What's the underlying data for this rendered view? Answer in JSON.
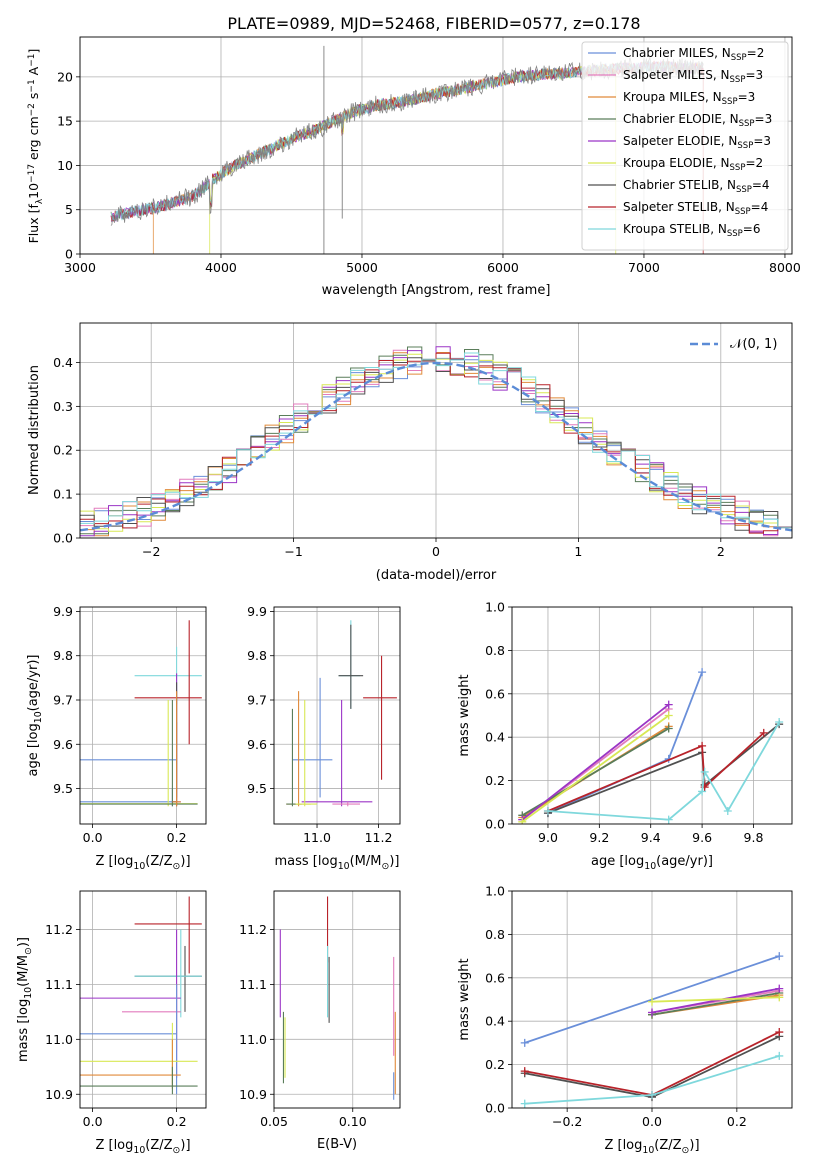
{
  "title": "PLATE=0989, MJD=52468, FIBERID=0577, z=0.178",
  "colors": {
    "chabrier_miles": "#6a8fd9",
    "salpeter_miles": "#e27cbd",
    "kroupa_miles": "#e08a3a",
    "chabrier_elodie": "#5a7d5a",
    "salpeter_elodie": "#9b35c6",
    "kroupa_elodie": "#d8e855",
    "chabrier_stelib": "#505050",
    "salpeter_stelib": "#b8232a",
    "kroupa_stelib": "#7fd8dc",
    "normal_curve": "#5b8bd6",
    "spectrum_gray": "#808080"
  },
  "legend": [
    {
      "label": "Chabrier MILES, N",
      "sub": "SSP",
      "tail": "=2",
      "color_key": "chabrier_miles"
    },
    {
      "label": "Salpeter MILES, N",
      "sub": "SSP",
      "tail": "=3",
      "color_key": "salpeter_miles"
    },
    {
      "label": "Kroupa MILES, N",
      "sub": "SSP",
      "tail": "=3",
      "color_key": "kroupa_miles"
    },
    {
      "label": "Chabrier ELODIE, N",
      "sub": "SSP",
      "tail": "=3",
      "color_key": "chabrier_elodie"
    },
    {
      "label": "Salpeter ELODIE, N",
      "sub": "SSP",
      "tail": "=3",
      "color_key": "salpeter_elodie"
    },
    {
      "label": "Kroupa ELODIE, N",
      "sub": "SSP",
      "tail": "=2",
      "color_key": "kroupa_elodie"
    },
    {
      "label": "Chabrier STELIB, N",
      "sub": "SSP",
      "tail": "=4",
      "color_key": "chabrier_stelib"
    },
    {
      "label": "Salpeter STELIB, N",
      "sub": "SSP",
      "tail": "=4",
      "color_key": "salpeter_stelib"
    },
    {
      "label": "Kroupa STELIB, N",
      "sub": "SSP",
      "tail": "=6",
      "color_key": "kroupa_stelib"
    }
  ],
  "chart_data": [
    {
      "id": "spectrum",
      "type": "line",
      "xlabel": "wavelength [Angstrom, rest frame]",
      "ylabel": "Flux [f",
      "ylabel_parts": {
        "a": "Flux [f",
        "sub_lambda": "λ",
        "b": "10",
        "sup1": "−17",
        "c": " erg cm",
        "sup2": "−2",
        "d": " s",
        "sup3": "−1",
        "e": " A",
        "sup4": "−1",
        "f": "]"
      },
      "xlim": [
        3000,
        8050
      ],
      "ylim": [
        0,
        24.5
      ],
      "xticks": [
        3000,
        4000,
        5000,
        6000,
        7000,
        8000
      ],
      "yticks": [
        0,
        5,
        10,
        15,
        20
      ],
      "x_range": [
        3220,
        7420
      ],
      "envelope_x": [
        3220,
        3400,
        3600,
        3800,
        3950,
        4100,
        4300,
        4500,
        4700,
        4900,
        5100,
        5300,
        5500,
        5700,
        5900,
        6100,
        6300,
        6500,
        6700,
        6900,
        7100,
        7300,
        7420
      ],
      "envelope_y": [
        4.2,
        4.8,
        5.5,
        6.5,
        8.5,
        10.0,
        11.5,
        13.0,
        14.2,
        15.8,
        16.8,
        17.2,
        18.0,
        18.6,
        19.3,
        20.0,
        20.3,
        20.5,
        20.8,
        21.0,
        21.2,
        21.0,
        21.0
      ]
    },
    {
      "id": "residuals",
      "type": "histogram",
      "xlabel": "(data-model)/error",
      "ylabel": "Normed distribution",
      "xlim": [
        -2.5,
        2.5
      ],
      "ylim": [
        0,
        0.49
      ],
      "xticks": [
        -2,
        -1,
        0,
        1,
        2
      ],
      "yticks": [
        0.0,
        0.1,
        0.2,
        0.3,
        0.4
      ],
      "legend_label": "𝒩(0, 1)",
      "bin_width": 0.1
    },
    {
      "id": "age_vs_Z",
      "type": "scatter",
      "xlabel": "Z [log",
      "xlabel_parts": {
        "a": "Z [log",
        "sub": "10",
        "b": "(Z/Z",
        "sub2": "⊙",
        "c": ")]"
      },
      "ylabel_parts": {
        "a": "age  [log",
        "sub": "10",
        "b": "(age/yr)]"
      },
      "xlim": [
        -0.03,
        0.27
      ],
      "ylim": [
        9.42,
        9.91
      ],
      "xticks": [
        0.0,
        0.2
      ],
      "yticks": [
        9.5,
        9.6,
        9.7,
        9.8,
        9.9
      ]
    },
    {
      "id": "age_vs_mass",
      "type": "scatter",
      "xlabel_parts": {
        "a": "mass [log",
        "sub": "10",
        "b": "(M/M",
        "sub2": "⊙",
        "c": ")]"
      },
      "xlim": [
        10.86,
        11.27
      ],
      "ylim": [
        9.42,
        9.91
      ],
      "xticks": [
        11.0,
        11.2
      ],
      "yticks": [
        9.5,
        9.6,
        9.7,
        9.8,
        9.9
      ]
    },
    {
      "id": "weight_vs_age",
      "type": "line",
      "xlabel_parts": {
        "a": "age  [log",
        "sub": "10",
        "b": "(age/yr)]"
      },
      "ylabel": "mass weight",
      "xlim": [
        8.86,
        9.95
      ],
      "ylim": [
        0.0,
        1.0
      ],
      "xticks": [
        9.0,
        9.2,
        9.4,
        9.6,
        9.8
      ],
      "yticks": [
        0.0,
        0.2,
        0.4,
        0.6,
        0.8,
        1.0
      ],
      "series": [
        {
          "color_key": "chabrier_miles",
          "x": [
            9.0,
            9.47,
            9.6
          ],
          "y": [
            0.05,
            0.3,
            0.7
          ]
        },
        {
          "color_key": "salpeter_miles",
          "x": [
            8.9,
            9.47
          ],
          "y": [
            0.02,
            0.53
          ]
        },
        {
          "color_key": "kroupa_miles",
          "x": [
            8.9,
            9.47
          ],
          "y": [
            0.03,
            0.45
          ]
        },
        {
          "color_key": "chabrier_elodie",
          "x": [
            8.9,
            9.47
          ],
          "y": [
            0.04,
            0.44
          ]
        },
        {
          "color_key": "salpeter_elodie",
          "x": [
            8.9,
            9.47
          ],
          "y": [
            0.02,
            0.55
          ]
        },
        {
          "color_key": "kroupa_elodie",
          "x": [
            8.9,
            9.47
          ],
          "y": [
            0.01,
            0.5
          ]
        },
        {
          "color_key": "chabrier_stelib",
          "x": [
            9.0,
            9.6,
            9.61,
            9.9
          ],
          "y": [
            0.05,
            0.33,
            0.18,
            0.46
          ]
        },
        {
          "color_key": "salpeter_stelib",
          "x": [
            9.0,
            9.6,
            9.61,
            9.84
          ],
          "y": [
            0.06,
            0.36,
            0.17,
            0.42
          ]
        },
        {
          "color_key": "kroupa_stelib",
          "x": [
            9.0,
            9.47,
            9.6,
            9.61,
            9.7,
            9.9
          ],
          "y": [
            0.06,
            0.02,
            0.15,
            0.24,
            0.06,
            0.47
          ]
        }
      ]
    },
    {
      "id": "mass_vs_Z",
      "type": "scatter",
      "xlabel_parts": {
        "a": "Z [log",
        "sub": "10",
        "b": "(Z/Z",
        "sub2": "⊙",
        "c": ")]"
      },
      "ylabel_parts": {
        "a": "mass [log",
        "sub": "10",
        "b": "(M/M",
        "sub2": "⊙",
        "c": ")]"
      },
      "xlim": [
        -0.03,
        0.27
      ],
      "ylim": [
        10.875,
        11.27
      ],
      "xticks": [
        0.0,
        0.2
      ],
      "yticks": [
        10.9,
        11.0,
        11.1,
        11.2
      ]
    },
    {
      "id": "mass_vs_ebv",
      "type": "scatter",
      "xlabel": "E(B-V)",
      "xlim": [
        0.05,
        0.13
      ],
      "ylim": [
        10.875,
        11.27
      ],
      "xticks": [
        0.05,
        0.1
      ],
      "xtick_labels": [
        "0.05",
        "0.10"
      ],
      "yticks": [
        10.9,
        11.0,
        11.1,
        11.2
      ]
    },
    {
      "id": "weight_vs_Z",
      "type": "line",
      "xlabel_parts": {
        "a": "Z [log",
        "sub": "10",
        "b": "(Z/Z",
        "sub2": "⊙",
        "c": ")]"
      },
      "ylabel": "mass weight",
      "xlim": [
        -0.33,
        0.33
      ],
      "ylim": [
        0.0,
        1.0
      ],
      "xticks": [
        -0.2,
        0.0,
        0.2
      ],
      "xtick_labels": [
        "−0.2",
        "0.0",
        "0.2"
      ],
      "yticks": [
        0.0,
        0.2,
        0.4,
        0.6,
        0.8,
        1.0
      ],
      "series": [
        {
          "color_key": "chabrier_miles",
          "x": [
            -0.3,
            0.3
          ],
          "y": [
            0.3,
            0.7
          ]
        },
        {
          "color_key": "salpeter_miles",
          "x": [
            0.0,
            0.3
          ],
          "y": [
            0.44,
            0.54
          ]
        },
        {
          "color_key": "kroupa_miles",
          "x": [
            0.0,
            0.3
          ],
          "y": [
            0.43,
            0.52
          ]
        },
        {
          "color_key": "chabrier_elodie",
          "x": [
            0.0,
            0.3
          ],
          "y": [
            0.43,
            0.53
          ]
        },
        {
          "color_key": "salpeter_elodie",
          "x": [
            0.0,
            0.3
          ],
          "y": [
            0.44,
            0.55
          ]
        },
        {
          "color_key": "kroupa_elodie",
          "x": [
            0.0,
            0.3
          ],
          "y": [
            0.49,
            0.51
          ]
        },
        {
          "color_key": "chabrier_stelib",
          "x": [
            -0.3,
            0.0,
            0.3
          ],
          "y": [
            0.16,
            0.05,
            0.33
          ]
        },
        {
          "color_key": "salpeter_stelib",
          "x": [
            -0.3,
            0.0,
            0.3
          ],
          "y": [
            0.17,
            0.06,
            0.35
          ]
        },
        {
          "color_key": "kroupa_stelib",
          "x": [
            -0.3,
            0.0,
            0.3
          ],
          "y": [
            0.02,
            0.06,
            0.24
          ]
        }
      ]
    }
  ],
  "errorbars": {
    "age_vs_Z": [
      {
        "c": "chabrier_miles",
        "x": 0.2,
        "y": 9.565,
        "xl": -0.23,
        "xr": 0.2,
        "yl": 9.48,
        "yh": 9.65
      },
      {
        "c": "chabrier_miles",
        "x": 0.19,
        "y": 9.47,
        "xl": -0.23,
        "xr": 0.2,
        "yl": 9.46,
        "yh": 9.5
      },
      {
        "c": "kroupa_stelib",
        "x": 0.2,
        "y": 9.755,
        "xl": 0.1,
        "xr": 0.26,
        "yl": 9.69,
        "yh": 9.82
      },
      {
        "c": "salpeter_stelib",
        "x": 0.23,
        "y": 9.705,
        "xl": 0.1,
        "xr": 0.26,
        "yl": 9.6,
        "yh": 9.88
      },
      {
        "c": "salpeter_elodie",
        "x": 0.2,
        "y": 9.47,
        "xl": 0.19,
        "xr": 0.21,
        "yl": 9.47,
        "yh": 9.76
      },
      {
        "c": "kroupa_elodie",
        "x": 0.18,
        "y": 9.466,
        "xl": -0.03,
        "xr": 0.25,
        "yl": 9.46,
        "yh": 9.7
      },
      {
        "c": "chabrier_elodie",
        "x": 0.19,
        "y": 9.465,
        "xl": -0.03,
        "xr": 0.25,
        "yl": 9.46,
        "yh": 9.7
      },
      {
        "c": "chabrier_stelib",
        "x": 0.2,
        "y": 9.47,
        "xl": 0.19,
        "xr": 0.2,
        "yl": 9.46,
        "yh": 9.74
      },
      {
        "c": "kroupa_miles",
        "x": 0.2,
        "y": 9.47,
        "xl": 0.19,
        "xr": 0.21,
        "yl": 9.46,
        "yh": 9.72
      }
    ],
    "age_vs_mass": [
      {
        "c": "chabrier_miles",
        "x": 11.01,
        "y": 9.565,
        "xl": 10.92,
        "xr": 11.05,
        "yl": 9.48,
        "yh": 9.75
      },
      {
        "c": "kroupa_stelib",
        "x": 11.11,
        "y": 9.755,
        "xl": 11.07,
        "xr": 11.14,
        "yl": 9.68,
        "yh": 9.88
      },
      {
        "c": "salpeter_stelib",
        "x": 11.21,
        "y": 9.705,
        "xl": 11.15,
        "xr": 11.26,
        "yl": 9.52,
        "yh": 9.8
      },
      {
        "c": "salpeter_elodie",
        "x": 11.08,
        "y": 9.47,
        "xl": 10.95,
        "xr": 11.18,
        "yl": 9.46,
        "yh": 9.7
      },
      {
        "c": "salpeter_miles",
        "x": 11.1,
        "y": 9.465,
        "xl": 11.05,
        "xr": 11.14,
        "yl": 9.46,
        "yh": 9.47
      },
      {
        "c": "kroupa_miles",
        "x": 10.94,
        "y": 9.465,
        "xl": 10.9,
        "xr": 10.98,
        "yl": 9.46,
        "yh": 9.72
      },
      {
        "c": "chabrier_elodie",
        "x": 10.92,
        "y": 9.465,
        "xl": 10.9,
        "xr": 10.95,
        "yl": 9.46,
        "yh": 9.68
      },
      {
        "c": "kroupa_elodie",
        "x": 10.96,
        "y": 9.465,
        "xl": 10.93,
        "xr": 11.0,
        "yl": 9.46,
        "yh": 9.7
      },
      {
        "c": "chabrier_stelib",
        "x": 11.11,
        "y": 9.755,
        "xl": 11.07,
        "xr": 11.15,
        "yl": 9.68,
        "yh": 9.87
      }
    ],
    "mass_vs_Z": [
      {
        "c": "salpeter_stelib",
        "x": 0.23,
        "y": 11.21,
        "xl": 0.1,
        "xr": 0.26,
        "yl": 11.12,
        "yh": 11.26
      },
      {
        "c": "chabrier_stelib",
        "x": 0.22,
        "y": 11.115,
        "xl": 0.1,
        "xr": 0.26,
        "yl": 11.05,
        "yh": 11.17
      },
      {
        "c": "kroupa_stelib",
        "x": 0.21,
        "y": 11.115,
        "xl": 0.1,
        "xr": 0.26,
        "yl": 11.04,
        "yh": 11.2
      },
      {
        "c": "salpeter_elodie",
        "x": 0.2,
        "y": 11.075,
        "xl": -0.03,
        "xr": 0.21,
        "yl": 10.93,
        "yh": 11.2
      },
      {
        "c": "salpeter_miles",
        "x": 0.2,
        "y": 11.05,
        "xl": 0.07,
        "xr": 0.21,
        "yl": 10.98,
        "yh": 11.1
      },
      {
        "c": "chabrier_miles",
        "x": 0.2,
        "y": 11.01,
        "xl": -0.03,
        "xr": 0.2,
        "yl": 10.9,
        "yh": 11.1
      },
      {
        "c": "kroupa_elodie",
        "x": 0.19,
        "y": 10.96,
        "xl": -0.03,
        "xr": 0.25,
        "yl": 10.92,
        "yh": 11.03
      },
      {
        "c": "kroupa_miles",
        "x": 0.19,
        "y": 10.935,
        "xl": -0.03,
        "xr": 0.21,
        "yl": 10.91,
        "yh": 11.0
      },
      {
        "c": "chabrier_elodie",
        "x": 0.19,
        "y": 10.915,
        "xl": -0.03,
        "xr": 0.25,
        "yl": 10.9,
        "yh": 10.95
      }
    ],
    "mass_vs_ebv": [
      {
        "c": "salpeter_elodie",
        "x": 0.054,
        "y": 11.12,
        "xl": 0.054,
        "xr": 0.054,
        "yl": 11.04,
        "yh": 11.2
      },
      {
        "c": "chabrier_elodie",
        "x": 0.056,
        "y": 10.97,
        "xl": 0.056,
        "xr": 0.056,
        "yl": 10.92,
        "yh": 11.05
      },
      {
        "c": "kroupa_elodie",
        "x": 0.057,
        "y": 10.98,
        "xl": 0.057,
        "xr": 0.057,
        "yl": 10.93,
        "yh": 11.04
      },
      {
        "c": "salpeter_stelib",
        "x": 0.084,
        "y": 11.2,
        "xl": 0.084,
        "xr": 0.084,
        "yl": 11.14,
        "yh": 11.26
      },
      {
        "c": "kroupa_stelib",
        "x": 0.084,
        "y": 11.1,
        "xl": 0.084,
        "xr": 0.084,
        "yl": 11.04,
        "yh": 11.17
      },
      {
        "c": "chabrier_stelib",
        "x": 0.085,
        "y": 11.1,
        "xl": 0.085,
        "xr": 0.085,
        "yl": 11.03,
        "yh": 11.15
      },
      {
        "c": "salpeter_miles",
        "x": 0.126,
        "y": 11.05,
        "xl": 0.126,
        "xr": 0.126,
        "yl": 10.97,
        "yh": 11.15
      },
      {
        "c": "kroupa_miles",
        "x": 0.127,
        "y": 10.96,
        "xl": 0.127,
        "xr": 0.127,
        "yl": 10.9,
        "yh": 11.05
      },
      {
        "c": "chabrier_miles",
        "x": 0.126,
        "y": 10.92,
        "xl": 0.126,
        "xr": 0.126,
        "yl": 10.89,
        "yh": 10.94
      }
    ]
  }
}
